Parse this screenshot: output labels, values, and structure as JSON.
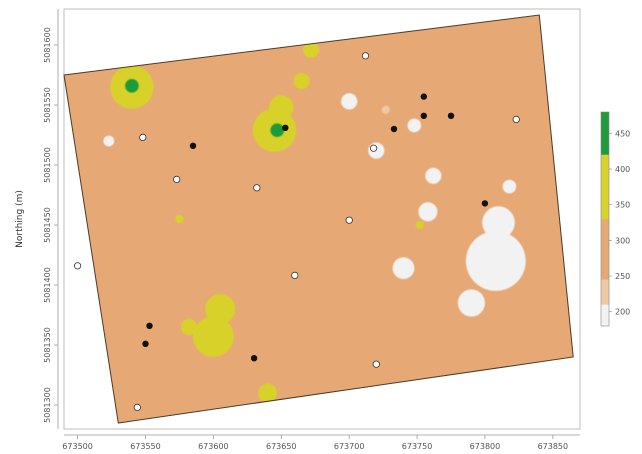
{
  "chart_data": {
    "type": "heatmap",
    "title": "",
    "xlabel": "",
    "ylabel": "Northing (m)",
    "x_ticks": [
      "673500",
      "673550",
      "673600",
      "673650",
      "673700",
      "673750",
      "673800",
      "673850"
    ],
    "y_ticks": [
      "5081300",
      "5081350",
      "5081400",
      "5081450",
      "5081500",
      "5081550",
      "5081600"
    ],
    "xlim": [
      673490,
      673870
    ],
    "ylim": [
      5081280,
      5081630
    ],
    "grid": false,
    "legend": {
      "placement": "right",
      "ticks": [
        "200",
        "250",
        "300",
        "350",
        "400",
        "450"
      ],
      "range": [
        180,
        480
      ],
      "bands": [
        {
          "from": 180,
          "to": 210,
          "color": "#f2f2f2"
        },
        {
          "from": 210,
          "to": 245,
          "color": "#efc9a3"
        },
        {
          "from": 245,
          "to": 330,
          "color": "#e6a875"
        },
        {
          "from": 330,
          "to": 420,
          "color": "#d8d12a"
        },
        {
          "from": 420,
          "to": 480,
          "color": "#1f9b3b"
        }
      ]
    },
    "domain_polygon": [
      [
        673490,
        5081575
      ],
      [
        673840,
        5081625
      ],
      [
        673865,
        5081340
      ],
      [
        673530,
        5081285
      ]
    ],
    "background_value": 270,
    "patches": [
      {
        "x": 673540,
        "y": 5081565,
        "r": 16,
        "value": 360
      },
      {
        "x": 673540,
        "y": 5081566,
        "r": 5,
        "value": 450
      },
      {
        "x": 673645,
        "y": 5081529,
        "r": 16,
        "value": 370
      },
      {
        "x": 673650,
        "y": 5081548,
        "r": 9,
        "value": 360
      },
      {
        "x": 673647,
        "y": 5081529,
        "r": 5,
        "value": 450
      },
      {
        "x": 673672,
        "y": 5081596,
        "r": 6,
        "value": 360
      },
      {
        "x": 673665,
        "y": 5081570,
        "r": 6,
        "value": 360
      },
      {
        "x": 673600,
        "y": 5081357,
        "r": 15,
        "value": 370
      },
      {
        "x": 673605,
        "y": 5081380,
        "r": 11,
        "value": 360
      },
      {
        "x": 673582,
        "y": 5081365,
        "r": 6,
        "value": 360
      },
      {
        "x": 673640,
        "y": 5081310,
        "r": 7,
        "value": 360
      },
      {
        "x": 673700,
        "y": 5081553,
        "r": 6,
        "value": 200
      },
      {
        "x": 673720,
        "y": 5081512,
        "r": 6,
        "value": 200
      },
      {
        "x": 673762,
        "y": 5081491,
        "r": 6,
        "value": 200
      },
      {
        "x": 673758,
        "y": 5081461,
        "r": 7,
        "value": 200
      },
      {
        "x": 673740,
        "y": 5081414,
        "r": 8,
        "value": 200
      },
      {
        "x": 673808,
        "y": 5081420,
        "r": 22,
        "value": 200
      },
      {
        "x": 673810,
        "y": 5081452,
        "r": 12,
        "value": 200
      },
      {
        "x": 673790,
        "y": 5081385,
        "r": 10,
        "value": 200
      },
      {
        "x": 673818,
        "y": 5081482,
        "r": 5,
        "value": 200
      },
      {
        "x": 673748,
        "y": 5081533,
        "r": 5,
        "value": 200
      },
      {
        "x": 673523,
        "y": 5081520,
        "r": 4,
        "value": 200
      },
      {
        "x": 673575,
        "y": 5081455,
        "r": 3,
        "value": 330
      },
      {
        "x": 673752,
        "y": 5081450,
        "r": 3,
        "value": 330
      },
      {
        "x": 673727,
        "y": 5081546,
        "r": 3,
        "value": 240
      }
    ],
    "samples_high": [
      {
        "x": 673585,
        "y": 5081516
      },
      {
        "x": 673653,
        "y": 5081531
      },
      {
        "x": 673733,
        "y": 5081530
      },
      {
        "x": 673755,
        "y": 5081557
      },
      {
        "x": 673755,
        "y": 5081541
      },
      {
        "x": 673775,
        "y": 5081541
      },
      {
        "x": 673800,
        "y": 5081468
      },
      {
        "x": 673553,
        "y": 5081366
      },
      {
        "x": 673550,
        "y": 5081351
      },
      {
        "x": 673630,
        "y": 5081339
      }
    ],
    "samples_low": [
      {
        "x": 673712,
        "y": 5081591
      },
      {
        "x": 673548,
        "y": 5081523
      },
      {
        "x": 673718,
        "y": 5081514
      },
      {
        "x": 673573,
        "y": 5081488
      },
      {
        "x": 673632,
        "y": 5081481
      },
      {
        "x": 673700,
        "y": 5081454
      },
      {
        "x": 673500,
        "y": 5081416
      },
      {
        "x": 673660,
        "y": 5081408
      },
      {
        "x": 673720,
        "y": 5081334
      },
      {
        "x": 673544,
        "y": 5081298
      },
      {
        "x": 673823,
        "y": 5081538
      }
    ]
  }
}
